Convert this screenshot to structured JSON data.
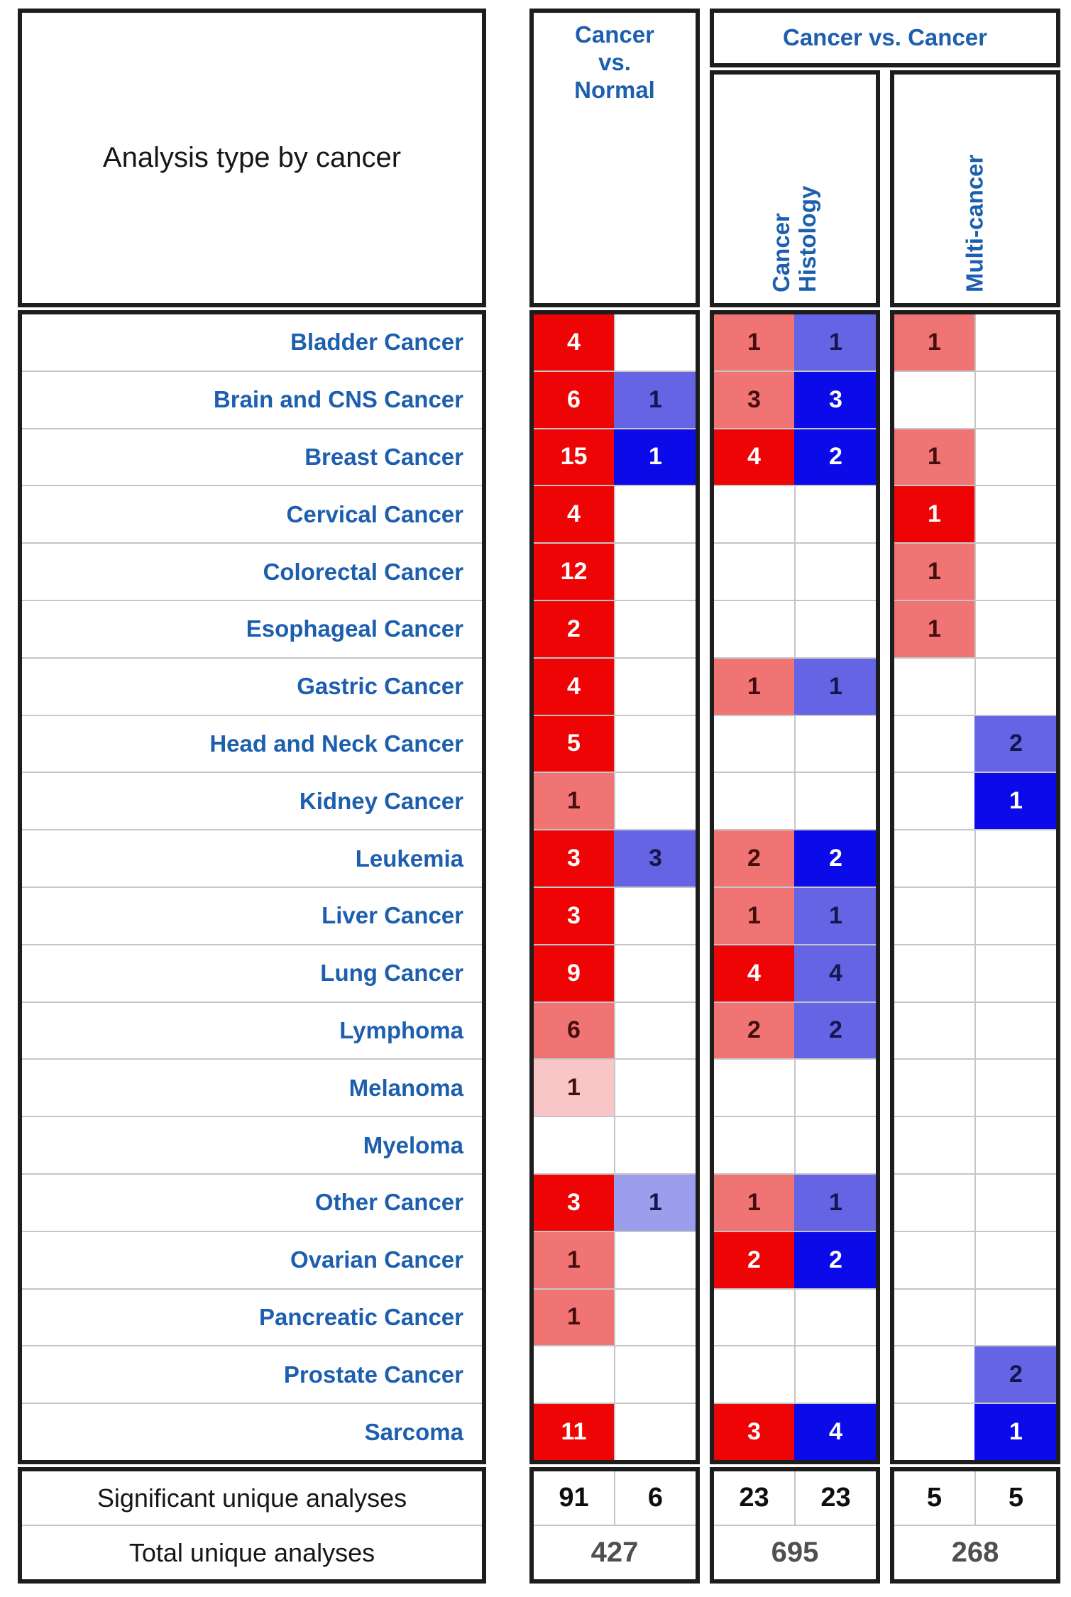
{
  "chart_data": {
    "type": "heatmap",
    "title": "Analysis type by cancer",
    "headers": {
      "cvn": "Cancer\nvs.\nNormal",
      "cvc": "Cancer vs. Cancer",
      "ch": "Cancer\nHistology",
      "mc": "Multi-cancer"
    },
    "columns": [
      "Cancer vs. Normal (over-expression)",
      "Cancer vs. Normal (under-expression)",
      "Cancer Histology (over-expression)",
      "Cancer Histology (under-expression)",
      "Multi-cancer (over-expression)",
      "Multi-cancer (under-expression)"
    ],
    "rows": [
      {
        "label": "Bladder Cancer",
        "cells": [
          {
            "v": "4",
            "s": "r3"
          },
          null,
          {
            "v": "1",
            "s": "r2"
          },
          {
            "v": "1",
            "s": "b2"
          },
          {
            "v": "1",
            "s": "r2"
          },
          null
        ]
      },
      {
        "label": "Brain and CNS Cancer",
        "cells": [
          {
            "v": "6",
            "s": "r3"
          },
          {
            "v": "1",
            "s": "b2"
          },
          {
            "v": "3",
            "s": "r2"
          },
          {
            "v": "3",
            "s": "b3"
          },
          null,
          null
        ]
      },
      {
        "label": "Breast Cancer",
        "cells": [
          {
            "v": "15",
            "s": "r3"
          },
          {
            "v": "1",
            "s": "b3"
          },
          {
            "v": "4",
            "s": "r3"
          },
          {
            "v": "2",
            "s": "b3"
          },
          {
            "v": "1",
            "s": "r2"
          },
          null
        ]
      },
      {
        "label": "Cervical Cancer",
        "cells": [
          {
            "v": "4",
            "s": "r3"
          },
          null,
          null,
          null,
          {
            "v": "1",
            "s": "r3"
          },
          null
        ]
      },
      {
        "label": "Colorectal Cancer",
        "cells": [
          {
            "v": "12",
            "s": "r3"
          },
          null,
          null,
          null,
          {
            "v": "1",
            "s": "r2"
          },
          null
        ]
      },
      {
        "label": "Esophageal Cancer",
        "cells": [
          {
            "v": "2",
            "s": "r3"
          },
          null,
          null,
          null,
          {
            "v": "1",
            "s": "r2"
          },
          null
        ]
      },
      {
        "label": "Gastric Cancer",
        "cells": [
          {
            "v": "4",
            "s": "r3"
          },
          null,
          {
            "v": "1",
            "s": "r2"
          },
          {
            "v": "1",
            "s": "b2"
          },
          null,
          null
        ]
      },
      {
        "label": "Head and Neck Cancer",
        "cells": [
          {
            "v": "5",
            "s": "r3"
          },
          null,
          null,
          null,
          null,
          {
            "v": "2",
            "s": "b2"
          }
        ]
      },
      {
        "label": "Kidney Cancer",
        "cells": [
          {
            "v": "1",
            "s": "r2"
          },
          null,
          null,
          null,
          null,
          {
            "v": "1",
            "s": "b3"
          }
        ]
      },
      {
        "label": "Leukemia",
        "cells": [
          {
            "v": "3",
            "s": "r3"
          },
          {
            "v": "3",
            "s": "b2"
          },
          {
            "v": "2",
            "s": "r2"
          },
          {
            "v": "2",
            "s": "b3"
          },
          null,
          null
        ]
      },
      {
        "label": "Liver Cancer",
        "cells": [
          {
            "v": "3",
            "s": "r3"
          },
          null,
          {
            "v": "1",
            "s": "r2"
          },
          {
            "v": "1",
            "s": "b2"
          },
          null,
          null
        ]
      },
      {
        "label": "Lung Cancer",
        "cells": [
          {
            "v": "9",
            "s": "r3"
          },
          null,
          {
            "v": "4",
            "s": "r3"
          },
          {
            "v": "4",
            "s": "b2"
          },
          null,
          null
        ]
      },
      {
        "label": "Lymphoma",
        "cells": [
          {
            "v": "6",
            "s": "r2"
          },
          null,
          {
            "v": "2",
            "s": "r2"
          },
          {
            "v": "2",
            "s": "b2"
          },
          null,
          null
        ]
      },
      {
        "label": "Melanoma",
        "cells": [
          {
            "v": "1",
            "s": "r1"
          },
          null,
          null,
          null,
          null,
          null
        ]
      },
      {
        "label": "Myeloma",
        "cells": [
          null,
          null,
          null,
          null,
          null,
          null
        ]
      },
      {
        "label": "Other Cancer",
        "cells": [
          {
            "v": "3",
            "s": "r3"
          },
          {
            "v": "1",
            "s": "b1"
          },
          {
            "v": "1",
            "s": "r2"
          },
          {
            "v": "1",
            "s": "b2"
          },
          null,
          null
        ]
      },
      {
        "label": "Ovarian Cancer",
        "cells": [
          {
            "v": "1",
            "s": "r2"
          },
          null,
          {
            "v": "2",
            "s": "r3"
          },
          {
            "v": "2",
            "s": "b3"
          },
          null,
          null
        ]
      },
      {
        "label": "Pancreatic Cancer",
        "cells": [
          {
            "v": "1",
            "s": "r2"
          },
          null,
          null,
          null,
          null,
          null
        ]
      },
      {
        "label": "Prostate Cancer",
        "cells": [
          null,
          null,
          null,
          null,
          null,
          {
            "v": "2",
            "s": "b2"
          }
        ]
      },
      {
        "label": "Sarcoma",
        "cells": [
          {
            "v": "11",
            "s": "r3"
          },
          null,
          {
            "v": "3",
            "s": "r3"
          },
          {
            "v": "4",
            "s": "b3"
          },
          null,
          {
            "v": "1",
            "s": "b3"
          }
        ]
      }
    ],
    "footer": {
      "significant_label": "Significant unique analyses",
      "total_label": "Total unique analyses",
      "significant": [
        "91",
        "6",
        "23",
        "23",
        "5",
        "5"
      ],
      "totals": [
        "427",
        "695",
        "268"
      ]
    }
  },
  "colors": {
    "label_blue": "#1d5fae",
    "grid_border": "#1d1d1d",
    "separator": "#c6c6c6",
    "text_dark": "#161616",
    "total_gray": "#4f4f4f",
    "cells": {
      "r3": {
        "bg": "#ee0404",
        "fg": "#ffffff"
      },
      "r2": {
        "bg": "#f07474",
        "fg": "#450d0d"
      },
      "r1": {
        "bg": "#f8c6c6",
        "fg": "#450d0d"
      },
      "b3": {
        "bg": "#0b0bea",
        "fg": "#ffffff"
      },
      "b2": {
        "bg": "#6464e4",
        "fg": "#16164e"
      },
      "b1": {
        "bg": "#9d9dee",
        "fg": "#16164e"
      }
    }
  }
}
